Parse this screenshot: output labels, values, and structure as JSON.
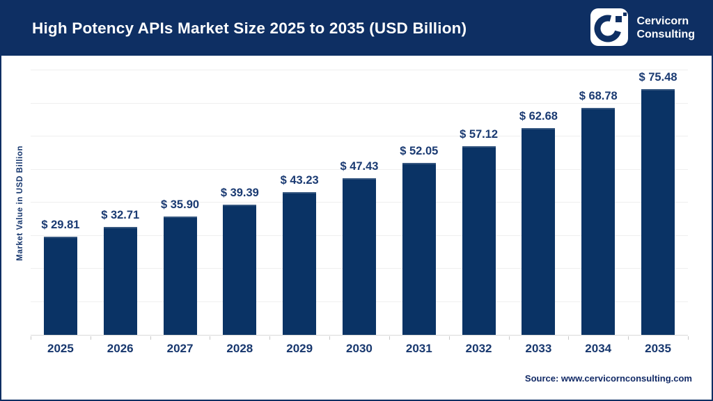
{
  "header": {
    "title": "High Potency APIs Market Size 2025 to 2035 (USD Billion)",
    "logo": {
      "line1": "Cervicorn",
      "line2": "Consulting"
    }
  },
  "chart_data": {
    "type": "bar",
    "title": "High Potency APIs Market Size 2025 to 2035 (USD Billion)",
    "categories": [
      "2025",
      "2026",
      "2027",
      "2028",
      "2029",
      "2030",
      "2031",
      "2032",
      "2033",
      "2034",
      "2035"
    ],
    "values": [
      29.81,
      32.71,
      35.9,
      39.39,
      43.23,
      47.43,
      52.05,
      57.12,
      62.68,
      68.78,
      75.48
    ],
    "value_labels": [
      "$ 29.81",
      "$ 32.71",
      "$ 35.90",
      "$ 39.39",
      "$ 43.23",
      "$ 47.43",
      "$ 52.05",
      "$ 57.12",
      "$ 62.68",
      "$ 68.78",
      "$ 75.48"
    ],
    "xlabel": "",
    "ylabel": "Market Value in USD Billion",
    "ylim": [
      0,
      80
    ],
    "gridline_step": 10,
    "grid": "horizontal-only",
    "legend": "none",
    "bar_color": "#0a3365"
  },
  "footer": {
    "source": "Source: www.cervicornconsulting.com"
  },
  "colors": {
    "navy": "#0e2f63",
    "bar": "#0a3365",
    "text": "#17376e",
    "gridline": "#efefef",
    "axis": "#d9d9d9"
  }
}
